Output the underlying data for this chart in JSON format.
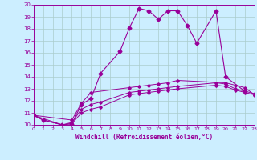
{
  "main_x": [
    0,
    1,
    3,
    4,
    5,
    6,
    7,
    9,
    10,
    11,
    12,
    13,
    14,
    15,
    16,
    17,
    19,
    20,
    22
  ],
  "main_y": [
    10.8,
    10.4,
    10.0,
    10.1,
    11.7,
    12.2,
    14.3,
    16.1,
    18.1,
    19.7,
    19.5,
    18.8,
    19.5,
    19.5,
    18.3,
    16.8,
    19.5,
    14.0,
    12.8
  ],
  "flat1_x": [
    0,
    1,
    3,
    4,
    5,
    6,
    7,
    10,
    11,
    12,
    13,
    14,
    15,
    19,
    20,
    21,
    22,
    23
  ],
  "flat1_y": [
    10.8,
    10.4,
    10.0,
    10.1,
    11.0,
    11.3,
    11.5,
    12.5,
    12.6,
    12.7,
    12.8,
    12.9,
    13.0,
    13.3,
    13.2,
    12.9,
    12.7,
    12.5
  ],
  "flat2_x": [
    0,
    3,
    4,
    5,
    6,
    7,
    10,
    11,
    12,
    13,
    14,
    15,
    19,
    20,
    21,
    22,
    23
  ],
  "flat2_y": [
    10.8,
    10.0,
    10.2,
    11.3,
    11.7,
    11.9,
    12.7,
    12.8,
    12.9,
    13.0,
    13.1,
    13.2,
    13.5,
    13.4,
    13.0,
    12.8,
    12.6
  ],
  "flat3_x": [
    0,
    4,
    5,
    6,
    10,
    11,
    12,
    13,
    14,
    15,
    20,
    21,
    22,
    23
  ],
  "flat3_y": [
    10.8,
    10.4,
    11.8,
    12.7,
    13.1,
    13.2,
    13.3,
    13.4,
    13.5,
    13.7,
    13.5,
    13.3,
    13.1,
    12.5
  ],
  "color": "#990099",
  "bg_color": "#cceeff",
  "xlabel": "Windchill (Refroidissement éolien,°C)",
  "ylim": [
    10,
    20
  ],
  "xlim": [
    0,
    23
  ],
  "grid_color": "#aacccc",
  "xticks": [
    0,
    1,
    2,
    3,
    4,
    5,
    6,
    7,
    8,
    9,
    10,
    11,
    12,
    13,
    14,
    15,
    16,
    17,
    18,
    19,
    20,
    21,
    22,
    23
  ],
  "yticks": [
    10,
    11,
    12,
    13,
    14,
    15,
    16,
    17,
    18,
    19,
    20
  ]
}
